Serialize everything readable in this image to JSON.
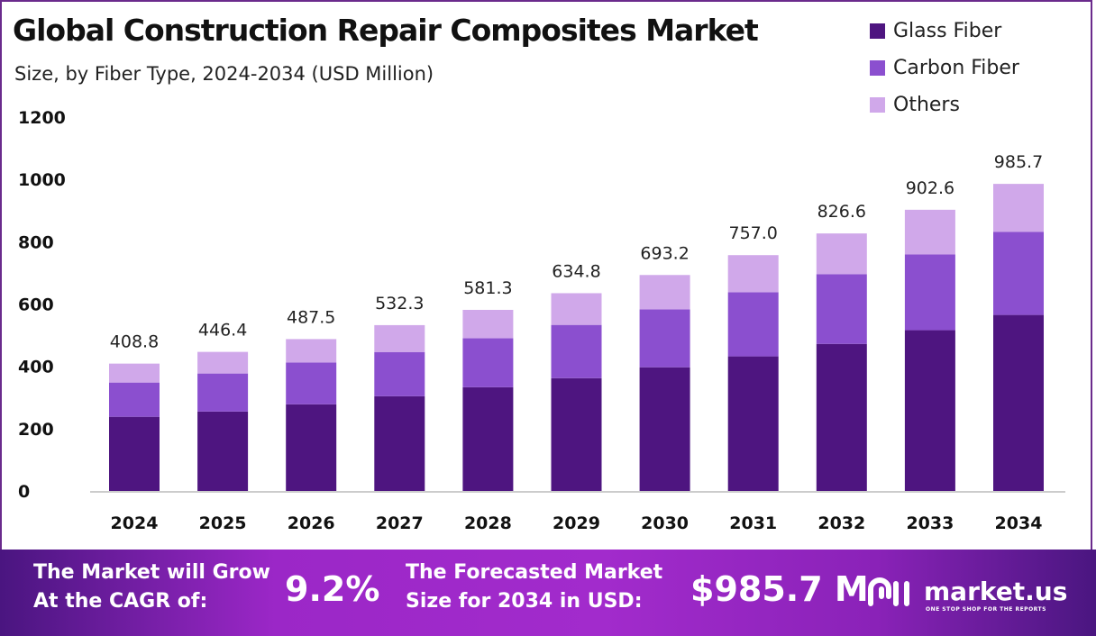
{
  "chart_data": {
    "type": "bar",
    "stacked": true,
    "title": "Global Construction Repair Composites Market",
    "subtitle": "Size, by  Fiber Type, 2024-2034 (USD Million)",
    "categories": [
      "2024",
      "2025",
      "2026",
      "2027",
      "2028",
      "2029",
      "2030",
      "2031",
      "2032",
      "2033",
      "2034"
    ],
    "series": [
      {
        "name": "Glass Fiber",
        "color": "#4e1580",
        "values": [
          238,
          255,
          278,
          304,
          333,
          362,
          397,
          432,
          472,
          516,
          565
        ]
      },
      {
        "name": "Carbon Fiber",
        "color": "#8b4fcf",
        "values": [
          110,
          122,
          134,
          142,
          157,
          171,
          186,
          206,
          224,
          243,
          267
        ]
      },
      {
        "name": "Others",
        "color": "#d0a8ea",
        "values": [
          60.8,
          69.4,
          75.5,
          86.3,
          91.3,
          101.8,
          110.2,
          119.0,
          130.6,
          143.6,
          153.7
        ]
      }
    ],
    "totals": [
      "408.8",
      "446.4",
      "487.5",
      "532.3",
      "581.3",
      "634.8",
      "693.2",
      "757.0",
      "826.6",
      "902.6",
      "985.7"
    ],
    "yticks": [
      "0",
      "200",
      "400",
      "600",
      "800",
      "1000",
      "1200"
    ],
    "ylim": [
      0,
      1200
    ],
    "grid": false,
    "legend": "top-right"
  },
  "footer": {
    "cagr_label_1": "The Market will Grow",
    "cagr_label_2": "At the CAGR of:",
    "cagr_value": "9.2%",
    "forecast_label_1": "The Forecasted Market",
    "forecast_label_2": "Size for 2034 in USD:",
    "forecast_value": "$985.7 M",
    "logo_text": "market.us",
    "logo_tagline": "ONE STOP SHOP FOR THE REPORTS"
  }
}
